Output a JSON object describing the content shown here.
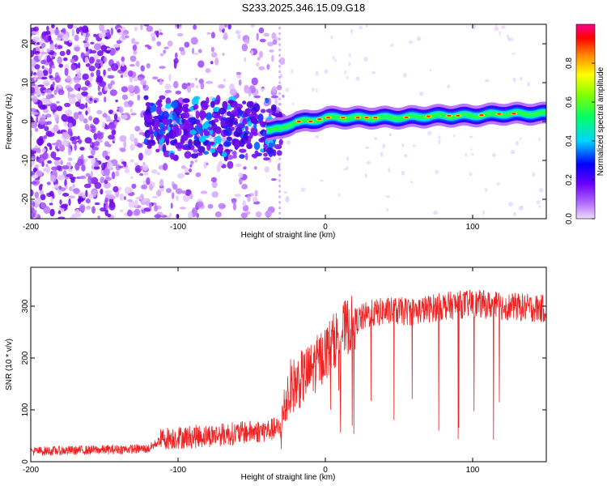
{
  "title": "S233.2025.346.15.09.G18",
  "chart_data": [
    {
      "type": "heatmap",
      "xlabel": "Height of straight line (km)",
      "ylabel": "Frequency (Hz)",
      "xlim": [
        -200,
        150
      ],
      "ylim": [
        -25,
        25
      ],
      "xticks": [
        -200,
        -100,
        0,
        100
      ],
      "yticks": [
        20,
        10,
        0,
        -10,
        -20
      ],
      "colorbar": {
        "label": "Normalized spectral amplitude",
        "range": [
          0,
          1
        ],
        "ticks": [
          "0.0",
          "0.2",
          "0.4",
          "0.6",
          "0.8"
        ],
        "colors": [
          "#e8d0ff",
          "#8a2be2",
          "#0000ff",
          "#00e5ff",
          "#00ff00",
          "#ffff00",
          "#ff8800",
          "#ff0000",
          "#ff00aa"
        ]
      },
      "ridge": {
        "x": [
          -200,
          -120,
          -100,
          -80,
          -60,
          -40,
          -30,
          -20,
          -10,
          0,
          10,
          30,
          50,
          80,
          100,
          120,
          150
        ],
        "y": [
          0,
          -1,
          -2,
          -1,
          -1,
          -2,
          -2,
          0,
          0,
          1,
          1,
          1,
          1,
          1.5,
          1.5,
          2,
          2
        ]
      }
    },
    {
      "type": "line",
      "xlabel": "Height of straight line (km)",
      "ylabel": "SNR (10 * v/v)",
      "xlim": [
        -200,
        150
      ],
      "ylim": [
        0,
        375
      ],
      "xticks": [
        -200,
        -100,
        0,
        100
      ],
      "yticks": [
        0,
        100,
        200,
        300
      ],
      "color": "#ee2222",
      "envelope": {
        "x": [
          -200,
          -120,
          -110,
          -80,
          -60,
          -40,
          -30,
          -25,
          -20,
          -10,
          0,
          10,
          20,
          30,
          40,
          60,
          80,
          100,
          120,
          150
        ],
        "y": [
          20,
          25,
          45,
          50,
          55,
          60,
          65,
          140,
          150,
          175,
          210,
          250,
          270,
          285,
          290,
          290,
          300,
          305,
          300,
          295
        ]
      }
    }
  ]
}
